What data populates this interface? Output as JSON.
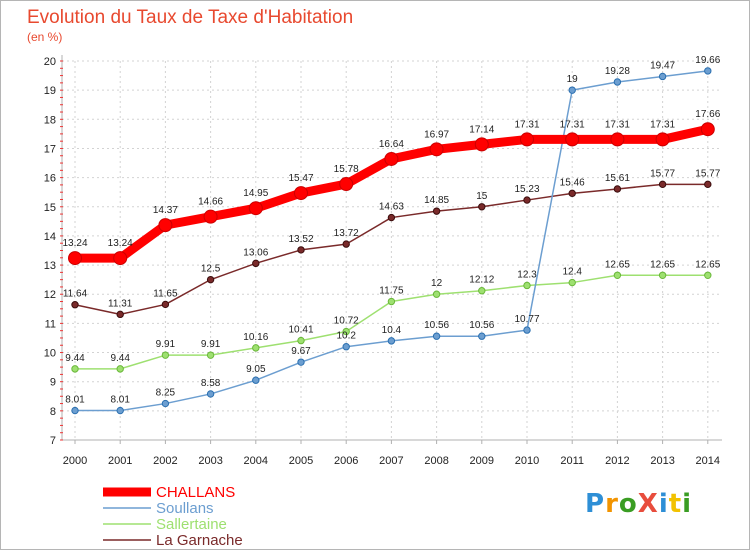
{
  "title": "Evolution du Taux de Taxe d'Habitation",
  "subtitle": "(en %)",
  "logo": {
    "text": "ProXiti",
    "letters": [
      "P",
      "r",
      "o",
      "X",
      "i",
      "t",
      "i"
    ],
    "colors": [
      "#2e8fd6",
      "#f29400",
      "#3a9d23",
      "#e84d3d",
      "#2e8fd6",
      "#f2c200",
      "#3a9d23"
    ]
  },
  "chart_data": {
    "type": "line",
    "title": "Evolution du Taux de Taxe d'Habitation",
    "ylabel": "(en %)",
    "xlabel": "",
    "ylim": [
      7,
      20
    ],
    "yticks": [
      7,
      8,
      9,
      10,
      11,
      12,
      13,
      14,
      15,
      16,
      17,
      18,
      19,
      20
    ],
    "grid": true,
    "legend_position": "bottom-left",
    "x": [
      "2000",
      "2001",
      "2002",
      "2003",
      "2004",
      "2005",
      "2006",
      "2007",
      "2008",
      "2009",
      "2010",
      "2011",
      "2012",
      "2013",
      "2014"
    ],
    "series": [
      {
        "name": "CHALLANS",
        "color": "#ff0000",
        "values": [
          13.24,
          13.24,
          14.37,
          14.66,
          14.95,
          15.47,
          15.78,
          16.64,
          16.97,
          17.14,
          17.31,
          17.31,
          17.31,
          17.31,
          17.66
        ],
        "labels": [
          "13.24",
          "13.24",
          "14.37",
          "14.66",
          "14.95",
          "15.47",
          "15.78",
          "16.64",
          "16.97",
          "17.14",
          "17.31",
          "17.31",
          "17.31",
          "17.31",
          "17.66"
        ]
      },
      {
        "name": "Soullans",
        "color": "#6c9ed0",
        "values": [
          8.01,
          8.01,
          8.25,
          8.58,
          9.05,
          9.67,
          10.2,
          10.4,
          10.56,
          10.56,
          10.77,
          19,
          19.28,
          19.47,
          19.66
        ],
        "labels": [
          "8.01",
          "8.01",
          "8.25",
          "8.58",
          "9.05",
          "9.67",
          "10.2",
          "10.4",
          "10.56",
          "10.56",
          "10.77",
          "19",
          "19.28",
          "19.47",
          "19.66"
        ]
      },
      {
        "name": "Sallertaine",
        "color": "#9ee070",
        "values": [
          9.44,
          9.44,
          9.91,
          9.91,
          10.16,
          10.41,
          10.72,
          11.75,
          12,
          12.12,
          12.3,
          12.4,
          12.65,
          12.65,
          12.65
        ],
        "labels": [
          "9.44",
          "9.44",
          "9.91",
          "9.91",
          "10.16",
          "10.41",
          "10.72",
          "11.75",
          "12",
          "12.12",
          "12.3",
          "12.4",
          "12.65",
          "12.65",
          "12.65"
        ]
      },
      {
        "name": "La Garnache",
        "color": "#7a2a2a",
        "values": [
          11.64,
          11.31,
          11.65,
          12.5,
          13.06,
          13.52,
          13.72,
          14.63,
          14.85,
          15,
          15.23,
          15.46,
          15.61,
          15.77,
          15.77
        ],
        "labels": [
          "11.64",
          "11.31",
          "11.65",
          "12.5",
          "13.06",
          "13.52",
          "13.72",
          "14.63",
          "14.85",
          "15",
          "15.23",
          "15.46",
          "15.61",
          "15.77",
          "15.77"
        ]
      }
    ]
  }
}
